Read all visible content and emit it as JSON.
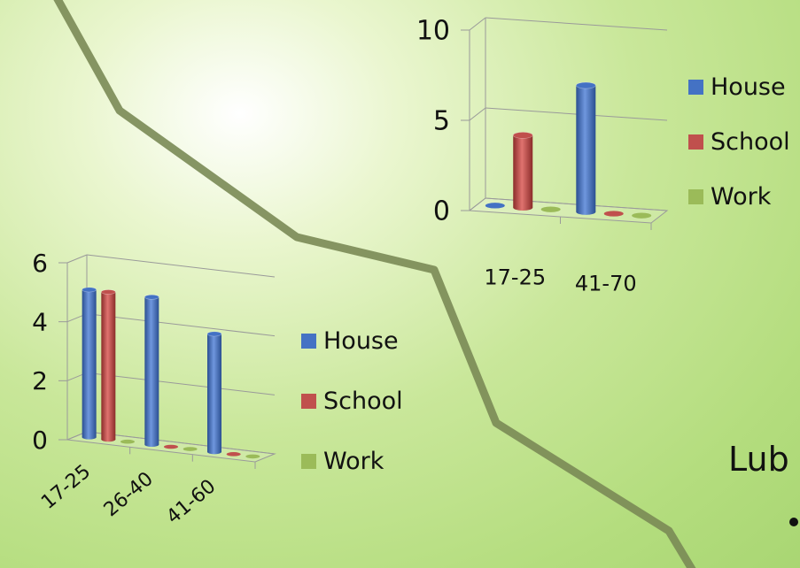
{
  "chart_data": [
    {
      "type": "bar",
      "categories": [
        "17-25",
        "26-40",
        "41-60"
      ],
      "series": [
        {
          "name": "House",
          "values": [
            5,
            5,
            4
          ]
        },
        {
          "name": "School",
          "values": [
            5,
            0,
            0
          ]
        },
        {
          "name": "Work",
          "values": [
            0,
            0,
            0
          ]
        }
      ],
      "ylim": [
        0,
        6
      ],
      "yticks": [
        "0",
        "2",
        "4",
        "6"
      ],
      "legend": "right",
      "grid": true
    },
    {
      "type": "bar",
      "categories": [
        "17-25",
        "41-70"
      ],
      "series": [
        {
          "name": "House",
          "values": [
            0,
            7
          ]
        },
        {
          "name": "School",
          "values": [
            4,
            0
          ]
        },
        {
          "name": "Work",
          "values": [
            0,
            0
          ]
        }
      ],
      "ylim": [
        0,
        10
      ],
      "yticks": [
        "0",
        "5",
        "10"
      ],
      "legend": "right",
      "grid": true
    }
  ],
  "colors": {
    "House": "#4472c4",
    "School": "#c0504d",
    "Work": "#9bbb59"
  },
  "side_text": "Lub"
}
